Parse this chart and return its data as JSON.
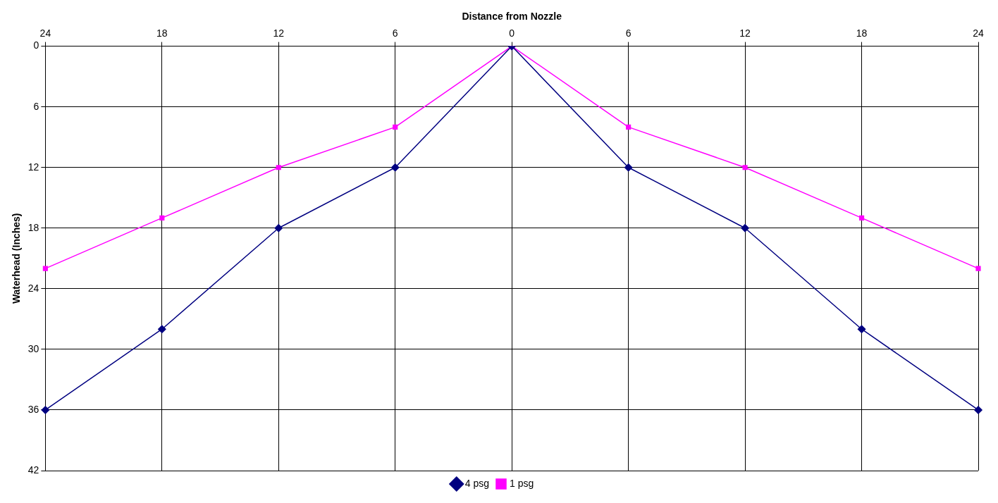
{
  "chart_data": {
    "type": "line",
    "xlabel": "Distance from Nozzle",
    "ylabel": "Waterhead (Inches)",
    "categories": [
      "24",
      "18",
      "12",
      "6",
      "0",
      "6",
      "12",
      "18",
      "24"
    ],
    "series": [
      {
        "name": "4 psg",
        "color": "#000080",
        "marker": "diamond",
        "values": [
          36,
          28,
          18,
          12,
          0,
          12,
          18,
          28,
          36
        ]
      },
      {
        "name": "1 psg",
        "color": "#ff00ff",
        "marker": "square",
        "values": [
          22,
          17,
          12,
          8,
          0,
          8,
          12,
          17,
          22
        ]
      }
    ],
    "ylim": [
      42,
      0
    ],
    "yticks": [
      0,
      6,
      12,
      18,
      24,
      30,
      36,
      42
    ],
    "grid": true,
    "legend": "bottom",
    "line_style": "solid"
  }
}
